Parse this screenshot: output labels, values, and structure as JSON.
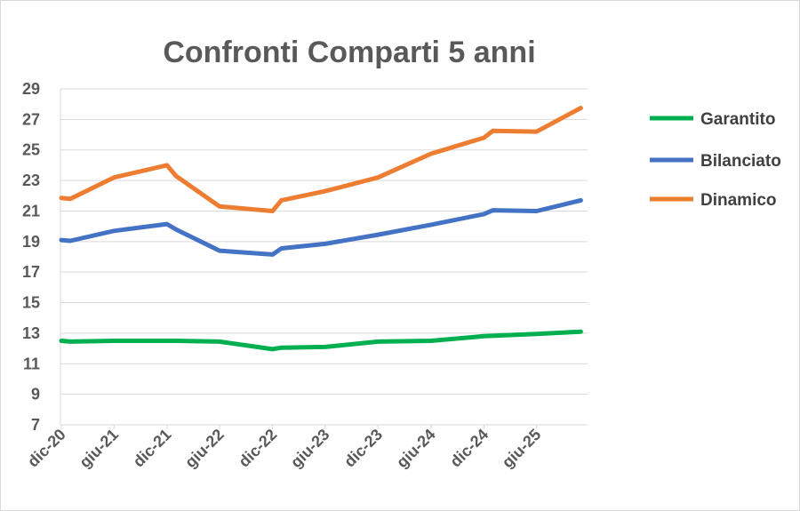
{
  "chart_data": {
    "type": "line",
    "title": "Confronti Comparti 5 anni",
    "xlabel": "",
    "ylabel": "",
    "ylim": [
      7,
      29
    ],
    "yticks": [
      7,
      9,
      11,
      13,
      15,
      17,
      19,
      21,
      23,
      25,
      27,
      29
    ],
    "xlim": [
      "2020-12-01",
      "2025-11-15"
    ],
    "x_tick_labels": [
      {
        "date": "2020-12-01",
        "label": "dic-20"
      },
      {
        "date": "2021-06-01",
        "label": "giu-21"
      },
      {
        "date": "2021-12-01",
        "label": "dic-21"
      },
      {
        "date": "2022-06-01",
        "label": "giu-22"
      },
      {
        "date": "2022-12-01",
        "label": "dic-22"
      },
      {
        "date": "2023-06-01",
        "label": "giu-23"
      },
      {
        "date": "2023-12-01",
        "label": "dic-23"
      },
      {
        "date": "2024-06-01",
        "label": "giu-24"
      },
      {
        "date": "2024-12-01",
        "label": "dic-24"
      },
      {
        "date": "2025-06-01",
        "label": "giu-25"
      }
    ],
    "grid": true,
    "legend_position": "right",
    "series": [
      {
        "name": "Garantito",
        "color": "#00b050",
        "points": [
          {
            "x": "2020-12-01",
            "y": 12.5
          },
          {
            "x": "2021-01-01",
            "y": 12.45
          },
          {
            "x": "2021-06-01",
            "y": 12.5
          },
          {
            "x": "2021-12-01",
            "y": 12.5
          },
          {
            "x": "2022-01-01",
            "y": 12.5
          },
          {
            "x": "2022-06-01",
            "y": 12.45
          },
          {
            "x": "2022-12-01",
            "y": 11.95
          },
          {
            "x": "2023-01-01",
            "y": 12.05
          },
          {
            "x": "2023-06-01",
            "y": 12.1
          },
          {
            "x": "2023-12-01",
            "y": 12.45
          },
          {
            "x": "2024-06-01",
            "y": 12.5
          },
          {
            "x": "2024-12-01",
            "y": 12.8
          },
          {
            "x": "2025-06-01",
            "y": 12.95
          },
          {
            "x": "2025-11-01",
            "y": 13.1
          }
        ]
      },
      {
        "name": "Bilanciato",
        "color": "#4472c4",
        "points": [
          {
            "x": "2020-12-01",
            "y": 19.1
          },
          {
            "x": "2021-01-01",
            "y": 19.05
          },
          {
            "x": "2021-06-01",
            "y": 19.7
          },
          {
            "x": "2021-12-01",
            "y": 20.15
          },
          {
            "x": "2022-01-01",
            "y": 19.8
          },
          {
            "x": "2022-06-01",
            "y": 18.4
          },
          {
            "x": "2022-12-01",
            "y": 18.15
          },
          {
            "x": "2023-01-01",
            "y": 18.55
          },
          {
            "x": "2023-06-01",
            "y": 18.85
          },
          {
            "x": "2023-12-01",
            "y": 19.45
          },
          {
            "x": "2024-06-01",
            "y": 20.1
          },
          {
            "x": "2024-12-01",
            "y": 20.8
          },
          {
            "x": "2025-01-01",
            "y": 21.05
          },
          {
            "x": "2025-06-01",
            "y": 21.0
          },
          {
            "x": "2025-11-01",
            "y": 21.7
          }
        ]
      },
      {
        "name": "Dinamico",
        "color": "#ed7d31",
        "points": [
          {
            "x": "2020-12-01",
            "y": 21.85
          },
          {
            "x": "2021-01-01",
            "y": 21.8
          },
          {
            "x": "2021-06-01",
            "y": 23.2
          },
          {
            "x": "2021-12-01",
            "y": 24.0
          },
          {
            "x": "2022-01-01",
            "y": 23.3
          },
          {
            "x": "2022-06-01",
            "y": 21.3
          },
          {
            "x": "2022-12-01",
            "y": 21.0
          },
          {
            "x": "2023-01-01",
            "y": 21.7
          },
          {
            "x": "2023-06-01",
            "y": 22.3
          },
          {
            "x": "2023-12-01",
            "y": 23.2
          },
          {
            "x": "2024-06-01",
            "y": 24.75
          },
          {
            "x": "2024-12-01",
            "y": 25.8
          },
          {
            "x": "2025-01-01",
            "y": 26.25
          },
          {
            "x": "2025-06-01",
            "y": 26.2
          },
          {
            "x": "2025-11-01",
            "y": 27.75
          }
        ]
      }
    ]
  }
}
